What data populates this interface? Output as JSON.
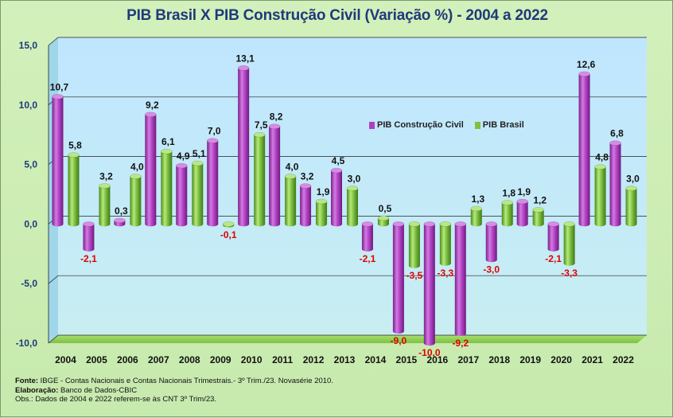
{
  "chart_data": {
    "type": "bar",
    "title": "PIB Brasil X PIB Construção Civil (Variação %) - 2004 a 2022",
    "categories": [
      "2004",
      "2005",
      "2006",
      "2007",
      "2008",
      "2009",
      "2010",
      "2011",
      "2012",
      "2013",
      "2014",
      "2015",
      "2016",
      "2017",
      "2018",
      "2019",
      "2020",
      "2021",
      "2022"
    ],
    "series": [
      {
        "name": "PIB Construção Civil",
        "color": "#b040c0",
        "values": [
          10.7,
          -2.1,
          0.3,
          9.2,
          4.9,
          7.0,
          13.1,
          8.2,
          3.2,
          4.5,
          -2.1,
          -9.0,
          -10.0,
          -9.2,
          -3.0,
          1.9,
          -2.1,
          12.6,
          6.8
        ]
      },
      {
        "name": "PIB Brasil",
        "color": "#7ec043",
        "values": [
          5.8,
          3.2,
          4.0,
          6.1,
          5.1,
          -0.1,
          7.5,
          4.0,
          1.9,
          3.0,
          0.5,
          -3.5,
          -3.3,
          1.3,
          1.8,
          1.2,
          -3.3,
          4.8,
          3.0
        ]
      }
    ],
    "labels_construcao": [
      "10,7",
      "-2,1",
      "0,3",
      "9,2",
      "4,9",
      "7,0",
      "13,1",
      "8,2",
      "3,2",
      "4,5",
      "-2,1",
      "-9,0",
      "-10,0",
      "-9,2",
      "-3,0",
      "1,9",
      "-2,1",
      "12,6",
      "6,8"
    ],
    "labels_brasil": [
      "5,8",
      "3,2",
      "4,0",
      "6,1",
      "5,1",
      "-0,1",
      "7,5",
      "4,0",
      "1,9",
      "3,0",
      "0,5",
      "-3,5",
      "-3,3",
      "1,3",
      "1,8",
      "1,2",
      "-3,3",
      "4,8",
      "3,0"
    ],
    "ylim": [
      -10,
      15
    ],
    "yticks": [
      -10,
      -5,
      0,
      5,
      10,
      15
    ],
    "ytick_labels": [
      "-10,0",
      "-5,0",
      "0,0",
      "5,0",
      "10,0",
      "15,0"
    ],
    "grid": true,
    "legend": "inside-top-right",
    "positive_label_color": "#111111",
    "negative_label_color": "#e00000",
    "xlabel": "",
    "ylabel": ""
  },
  "legend_items": [
    "PIB Construção Civil",
    "PIB Brasil"
  ],
  "footer": {
    "fonte_label": "Fonte:",
    "fonte_text": " IBGE - Contas Nacionais e Contas Nacionais Trimestrais.- 3º Trim./23. Novasérie 2010.",
    "elaboracao_label": "Elaboração:",
    "elaboracao_text": " Banco de Dados-CBIC",
    "obs_text": "Obs.: Dados de 2004 e 2022 referem-se às CNT 3º Trim/23."
  }
}
